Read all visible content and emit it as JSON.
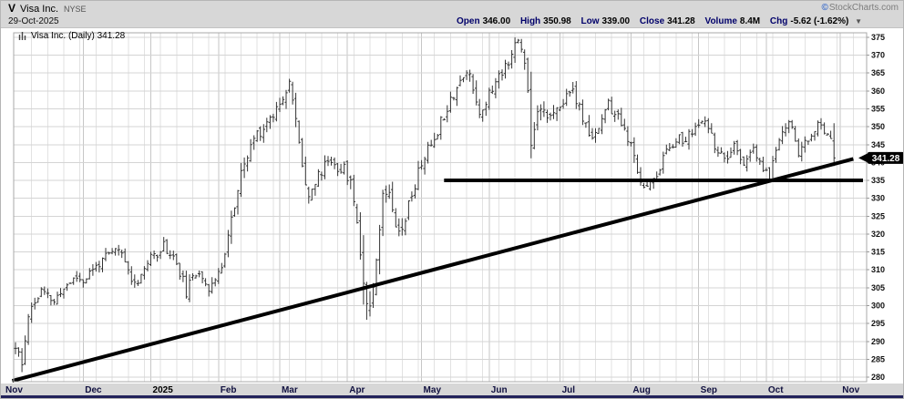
{
  "header": {
    "symbol": "V",
    "company": "Visa Inc.",
    "exchange": "NYSE",
    "date": "29-Oct-2025",
    "copyright_symbol": "©",
    "copyright_text": "StockCharts.com",
    "quote": [
      {
        "label": "Open",
        "value": "346.00"
      },
      {
        "label": "High",
        "value": "350.98"
      },
      {
        "label": "Low",
        "value": "339.00"
      },
      {
        "label": "Close",
        "value": "341.28"
      },
      {
        "label": "Volume",
        "value": "8.4M"
      },
      {
        "label": "Chg",
        "value": "-5.62 (-1.62%)"
      }
    ],
    "chg_arrow": "▼"
  },
  "legend": {
    "text": "Visa Inc. (Daily) 341.28"
  },
  "price_tag": "341.28",
  "chart_data": {
    "type": "ohlc-bar",
    "title": "Visa Inc. (Daily)",
    "last_date": "29-Oct-2025",
    "last_close": 341.28,
    "last_bar": {
      "open": 346.0,
      "high": 350.98,
      "low": 339.0,
      "close": 341.28,
      "volume": "8.4M",
      "chg": -5.62,
      "chg_pct": -1.62
    },
    "y_axis": {
      "min": 280,
      "max": 375,
      "step": 5,
      "ticks": [
        375,
        370,
        365,
        360,
        355,
        350,
        345,
        340,
        335,
        330,
        325,
        320,
        315,
        310,
        305,
        300,
        295,
        290,
        285,
        280
      ]
    },
    "x_axis": {
      "days_total": 263,
      "labels": [
        {
          "label": "Nov",
          "d": 0
        },
        {
          "label": "Dec",
          "d": 21
        },
        {
          "label": "2025",
          "d": 42,
          "bold": true
        },
        {
          "label": "Feb",
          "d": 63
        },
        {
          "label": "Mar",
          "d": 82
        },
        {
          "label": "Apr",
          "d": 103
        },
        {
          "label": "May",
          "d": 126
        },
        {
          "label": "Jun",
          "d": 147
        },
        {
          "label": "Jul",
          "d": 169
        },
        {
          "label": "Aug",
          "d": 191
        },
        {
          "label": "Sep",
          "d": 212
        },
        {
          "label": "Oct",
          "d": 233
        },
        {
          "label": "Nov",
          "d": 256
        }
      ]
    },
    "keyframes_format": "[trading_day_index, approx_close, approx_daily_range]",
    "keyframes": [
      [
        0,
        288,
        7
      ],
      [
        2,
        283,
        6
      ],
      [
        4,
        298,
        5
      ],
      [
        8,
        304,
        4
      ],
      [
        12,
        301,
        4
      ],
      [
        16,
        306,
        4
      ],
      [
        19,
        308,
        4
      ],
      [
        21,
        307,
        4
      ],
      [
        26,
        312,
        4
      ],
      [
        32,
        316,
        4
      ],
      [
        37,
        306,
        4
      ],
      [
        41,
        312,
        4
      ],
      [
        46,
        317,
        4
      ],
      [
        50,
        312,
        4
      ],
      [
        53,
        304,
        5
      ],
      [
        57,
        310,
        4
      ],
      [
        60,
        305,
        4
      ],
      [
        63,
        308,
        5
      ],
      [
        66,
        320,
        6
      ],
      [
        70,
        336,
        6
      ],
      [
        74,
        347,
        5
      ],
      [
        78,
        351,
        5
      ],
      [
        82,
        357,
        5
      ],
      [
        85,
        363,
        5
      ],
      [
        88,
        345,
        7
      ],
      [
        91,
        331,
        6
      ],
      [
        94,
        336,
        5
      ],
      [
        97,
        341,
        5
      ],
      [
        100,
        339,
        5
      ],
      [
        103,
        337,
        6
      ],
      [
        106,
        326,
        10
      ],
      [
        108,
        306,
        16
      ],
      [
        110,
        302,
        16
      ],
      [
        112,
        315,
        12
      ],
      [
        114,
        330,
        9
      ],
      [
        116,
        333,
        6
      ],
      [
        119,
        320,
        7
      ],
      [
        122,
        328,
        6
      ],
      [
        126,
        340,
        5
      ],
      [
        130,
        347,
        5
      ],
      [
        134,
        356,
        5
      ],
      [
        138,
        363,
        5
      ],
      [
        141,
        365,
        5
      ],
      [
        144,
        354,
        6
      ],
      [
        147,
        359,
        5
      ],
      [
        150,
        364,
        5
      ],
      [
        153,
        369,
        5
      ],
      [
        156,
        374,
        5
      ],
      [
        158,
        369,
        6
      ],
      [
        160,
        349,
        13
      ],
      [
        163,
        357,
        7
      ],
      [
        166,
        352,
        6
      ],
      [
        169,
        355,
        5
      ],
      [
        172,
        361,
        5
      ],
      [
        175,
        355,
        5
      ],
      [
        178,
        347,
        5
      ],
      [
        181,
        350,
        4
      ],
      [
        184,
        356,
        4
      ],
      [
        187,
        352,
        5
      ],
      [
        190,
        347,
        5
      ],
      [
        193,
        337,
        6
      ],
      [
        196,
        333,
        5
      ],
      [
        199,
        337,
        4
      ],
      [
        202,
        343,
        4
      ],
      [
        205,
        347,
        4
      ],
      [
        208,
        346,
        4
      ],
      [
        211,
        350,
        4
      ],
      [
        214,
        351,
        4
      ],
      [
        217,
        345,
        4
      ],
      [
        220,
        340,
        4
      ],
      [
        223,
        344,
        4
      ],
      [
        226,
        340,
        4
      ],
      [
        229,
        343,
        4
      ],
      [
        232,
        338,
        4
      ],
      [
        234,
        336,
        4
      ],
      [
        237,
        347,
        4
      ],
      [
        240,
        352,
        4
      ],
      [
        243,
        343,
        4
      ],
      [
        246,
        346,
        4
      ],
      [
        249,
        350,
        4
      ],
      [
        252,
        349,
        4
      ],
      [
        253,
        347,
        4
      ],
      [
        254,
        341.28,
        5
      ]
    ],
    "last_bar_day": 254,
    "seed": 11,
    "overlays": [
      {
        "name": "horizontal-support-line",
        "from_day": 133,
        "to_day": 263,
        "from_price": 335,
        "to_price": 335,
        "width": 4
      },
      {
        "name": "rising-trendline",
        "from_day": -1,
        "to_day": 260,
        "from_price": 279,
        "to_price": 341,
        "width": 4
      }
    ],
    "colors": {
      "bar": "#333333",
      "grid_h": "#d4d4d4",
      "grid_week": "#e2e2e2",
      "grid_month": "#c6c6c6",
      "overlay": "#000000",
      "plot_bg": "#ffffff",
      "plot_border": "#a8a8a8",
      "header_bg": "#d7d7d7",
      "strip_bg": "#d7d7d7",
      "footer_bar": "#22225a",
      "tag_bg": "#000000",
      "tag_text": "#ffffff",
      "axis_text": "#111111",
      "month_text": "#10103f"
    }
  }
}
